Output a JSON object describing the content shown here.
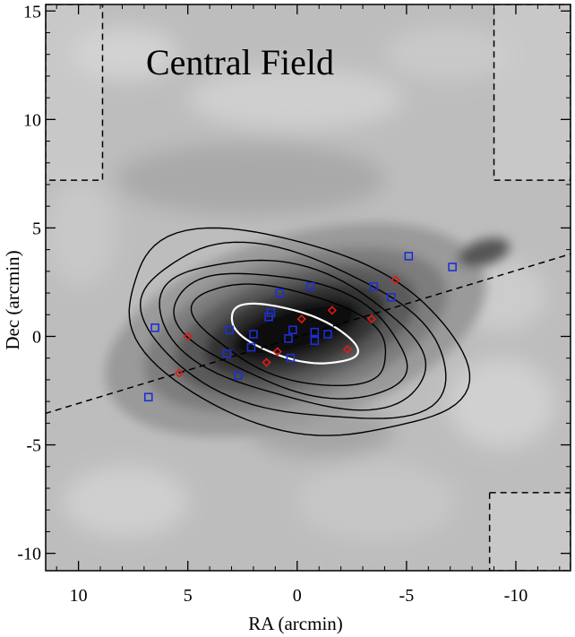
{
  "chart_data": {
    "type": "scatter",
    "title": "Central Field",
    "xlabel": "RA (arcmin)",
    "ylabel": "Dec (arcmin)",
    "xlim": [
      11.5,
      -12.5
    ],
    "ylim": [
      -10.8,
      15.3
    ],
    "x_ticks": [
      10,
      5,
      0,
      -5,
      -10
    ],
    "y_ticks": [
      -10,
      -5,
      0,
      5,
      10,
      15
    ],
    "x_tick_labels": [
      "10",
      "5",
      "0",
      "-5",
      "-10"
    ],
    "y_tick_labels": [
      "-10",
      "-5",
      "0",
      "5",
      "10",
      "15"
    ],
    "background": "grayscale density map with black contours and one white inner contour",
    "series": [
      {
        "marker": "square",
        "color": "#1e2fd6",
        "points": [
          [
            6.5,
            0.4
          ],
          [
            6.8,
            -2.8
          ],
          [
            3.1,
            0.3
          ],
          [
            3.2,
            -0.8
          ],
          [
            2.7,
            -1.8
          ],
          [
            2.0,
            0.1
          ],
          [
            2.1,
            -0.5
          ],
          [
            1.2,
            1.1
          ],
          [
            1.3,
            0.9
          ],
          [
            0.8,
            2.0
          ],
          [
            0.4,
            -0.1
          ],
          [
            0.2,
            0.3
          ],
          [
            0.3,
            -1.0
          ],
          [
            -0.6,
            2.3
          ],
          [
            -0.8,
            0.2
          ],
          [
            -0.8,
            -0.2
          ],
          [
            -1.4,
            0.1
          ],
          [
            -3.5,
            2.3
          ],
          [
            -4.3,
            1.8
          ],
          [
            -5.1,
            3.7
          ],
          [
            -7.1,
            3.2
          ]
        ]
      },
      {
        "marker": "diamond",
        "color": "#e01a1a",
        "points": [
          [
            5.0,
            0.0
          ],
          [
            5.4,
            -1.7
          ],
          [
            1.4,
            -1.2
          ],
          [
            0.9,
            -0.7
          ],
          [
            -0.2,
            0.8
          ],
          [
            -1.6,
            1.2
          ],
          [
            -2.3,
            -0.6
          ],
          [
            -3.4,
            0.8
          ],
          [
            -4.5,
            2.6
          ]
        ]
      }
    ],
    "major_axis_line": {
      "from": [
        12.0,
        -3.7
      ],
      "to": [
        -12.5,
        3.8
      ],
      "style": "dashed"
    },
    "dashed_regions": [
      {
        "ra": [
          8.9,
          11.5
        ],
        "dec": [
          7.2,
          15.3
        ]
      },
      {
        "ra": [
          -9.0,
          -12.5
        ],
        "dec": [
          7.2,
          15.3
        ]
      },
      {
        "ra": [
          -8.8,
          -12.5
        ],
        "dec": [
          -10.8,
          -7.2
        ]
      }
    ],
    "contour_levels": [
      {
        "rx": 8.0,
        "ry": 4.3,
        "offset": 0.75
      },
      {
        "rx": 7.2,
        "ry": 3.6,
        "offset": 0.55
      },
      {
        "rx": 6.3,
        "ry": 3.0,
        "offset": 0.35
      },
      {
        "rx": 5.5,
        "ry": 2.5,
        "offset": 0.2
      },
      {
        "rx": 4.6,
        "ry": 2.0,
        "offset": 0.1
      }
    ],
    "inner_white_contour": {
      "rx": 3.0,
      "ry": 1.1
    }
  }
}
